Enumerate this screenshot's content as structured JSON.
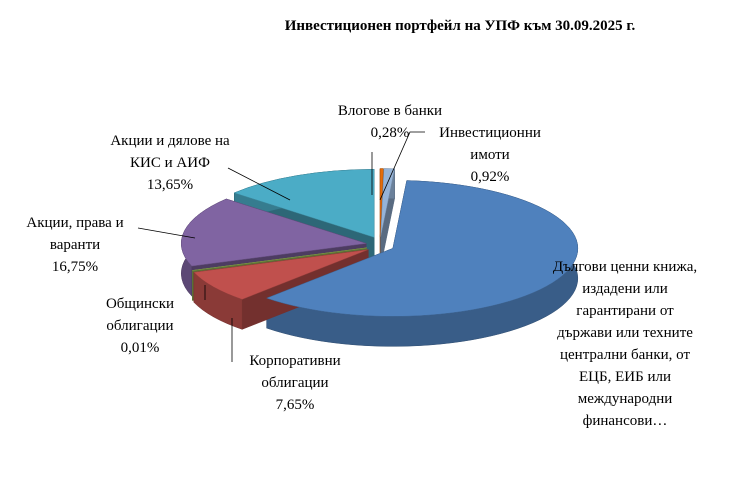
{
  "chart_data": {
    "type": "pie3d",
    "title": "Инвестиционен портфейл на УПФ към 30.09.2025 г.",
    "categories": [
      "Влогове в банки",
      "Инвестиционни имоти",
      "Дългови ценни книжа, издадени или гарантирани от държави или техните централни банки, от ЕЦБ, ЕИБ или международни финансови…",
      "Корпоративни облигации",
      "Общински облигации",
      "Акции, права и варанти",
      "Акции и дялове на КИС и АИФ"
    ],
    "values": [
      0.28,
      0.92,
      60.74,
      7.65,
      0.01,
      16.75,
      13.65
    ],
    "value_labels": [
      "0,28%",
      "0,92%",
      null,
      "7,65%",
      "0,01%",
      "16,75%",
      "13,65%"
    ],
    "colors": [
      "#e46c0a",
      "#95b3d7",
      "#4f81bd",
      "#c0504d",
      "#9bbb59",
      "#8064a2",
      "#4bacc6"
    ]
  }
}
